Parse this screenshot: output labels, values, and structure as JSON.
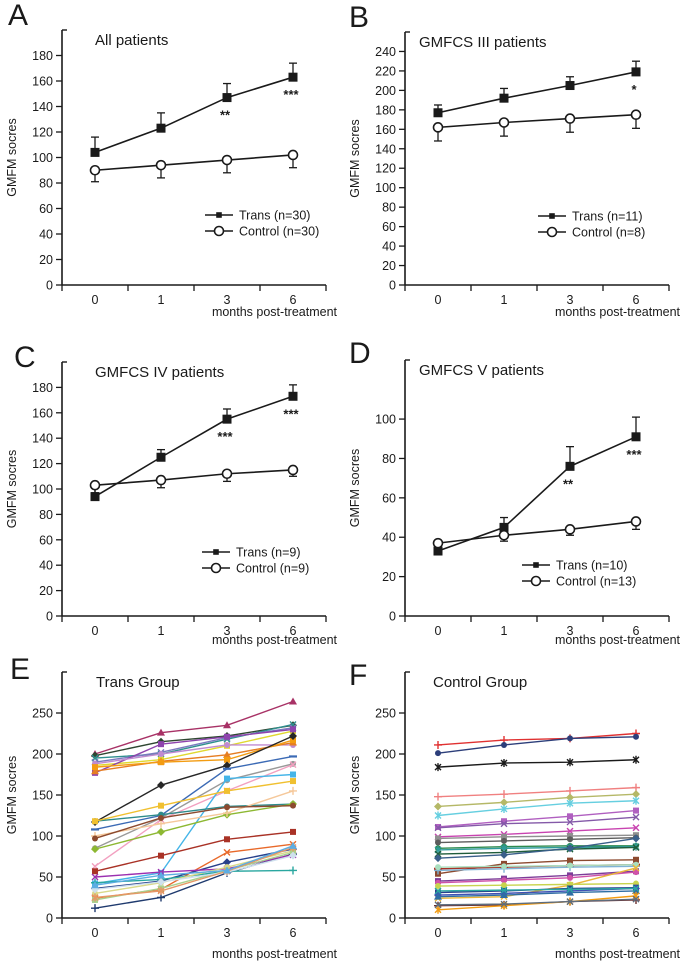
{
  "figure": {
    "x_axis_label": "months post-treatment",
    "y_axis_label": "GMFM socres",
    "categories": [
      "0",
      "1",
      "3",
      "6"
    ],
    "line_color": "#1a1a1a",
    "background": "#ffffff"
  },
  "chart_data": [
    {
      "panel": "A",
      "type": "line",
      "title": "All patients",
      "xlabel": "months post-treatment",
      "ylabel": "GMFM socres",
      "categories": [
        "0",
        "1",
        "3",
        "6"
      ],
      "yticks": [
        0,
        20,
        40,
        60,
        80,
        100,
        120,
        140,
        160,
        180
      ],
      "ylim": [
        0,
        200
      ],
      "legend_position": "lower right",
      "grid": false,
      "series": [
        {
          "name": "Trans (n=30)",
          "color": "#1a1a1a",
          "marker": "square-filled",
          "values": [
            104,
            123,
            147,
            163
          ],
          "err": [
            12,
            12,
            11,
            11
          ],
          "err_dir": "up"
        },
        {
          "name": "Control (n=30)",
          "color": "#1a1a1a",
          "marker": "circle-open",
          "values": [
            90,
            94,
            98,
            102
          ],
          "err": [
            9,
            10,
            10,
            10
          ],
          "err_dir": "down"
        }
      ],
      "annotations": [
        {
          "x": 2,
          "text": "**"
        },
        {
          "x": 3,
          "text": "***"
        }
      ]
    },
    {
      "panel": "B",
      "type": "line",
      "title": "GMFCS III patients",
      "xlabel": "months post-treatment",
      "ylabel": "GMFM socres",
      "categories": [
        "0",
        "1",
        "3",
        "6"
      ],
      "yticks": [
        0,
        20,
        40,
        60,
        80,
        100,
        120,
        140,
        160,
        180,
        200,
        220,
        240
      ],
      "ylim": [
        0,
        260
      ],
      "legend_position": "lower right",
      "grid": false,
      "series": [
        {
          "name": "Trans (n=11)",
          "color": "#1a1a1a",
          "marker": "square-filled",
          "values": [
            177,
            192,
            205,
            219
          ],
          "err": [
            8,
            10,
            9,
            11
          ],
          "err_dir": "up"
        },
        {
          "name": "Control (n=8)",
          "color": "#1a1a1a",
          "marker": "circle-open",
          "values": [
            162,
            167,
            171,
            175
          ],
          "err": [
            14,
            14,
            14,
            14
          ],
          "err_dir": "down"
        }
      ],
      "annotations": [
        {
          "x": 3,
          "text": "*"
        }
      ]
    },
    {
      "panel": "C",
      "type": "line",
      "title": "GMFCS IV patients",
      "xlabel": "months post-treatment",
      "ylabel": "GMFM socres",
      "categories": [
        "0",
        "1",
        "3",
        "6"
      ],
      "yticks": [
        0,
        20,
        40,
        60,
        80,
        100,
        120,
        140,
        160,
        180
      ],
      "ylim": [
        0,
        200
      ],
      "legend_position": "lower right",
      "grid": false,
      "series": [
        {
          "name": "Trans (n=9)",
          "color": "#1a1a1a",
          "marker": "square-filled",
          "values": [
            94,
            125,
            155,
            173
          ],
          "err": [
            7,
            6,
            8,
            9
          ],
          "err_dir": "up"
        },
        {
          "name": "Control (n=9)",
          "color": "#1a1a1a",
          "marker": "circle-open",
          "values": [
            103,
            107,
            112,
            115
          ],
          "err": [
            6,
            6,
            6,
            5
          ],
          "err_dir": "down"
        }
      ],
      "annotations": [
        {
          "x": 2,
          "text": "***"
        },
        {
          "x": 3,
          "text": "***"
        }
      ]
    },
    {
      "panel": "D",
      "type": "line",
      "title": "GMFCS V patients",
      "xlabel": "months post-treatment",
      "ylabel": "GMFM socres",
      "categories": [
        "0",
        "1",
        "3",
        "6"
      ],
      "yticks": [
        0,
        20,
        40,
        60,
        80,
        100
      ],
      "ylim": [
        0,
        130
      ],
      "legend_position": "lower right",
      "grid": false,
      "series": [
        {
          "name": "Trans (n=10)",
          "color": "#1a1a1a",
          "marker": "square-filled",
          "values": [
            33,
            45,
            76,
            91
          ],
          "err": [
            3,
            5,
            10,
            10
          ],
          "err_dir": "up"
        },
        {
          "name": "Control (n=13)",
          "color": "#1a1a1a",
          "marker": "circle-open",
          "values": [
            37,
            41,
            44,
            48
          ],
          "err": [
            4,
            3,
            3,
            4
          ],
          "err_dir": "down"
        }
      ],
      "annotations": [
        {
          "x": 2,
          "text": "**"
        },
        {
          "x": 3,
          "text": "***"
        }
      ]
    },
    {
      "panel": "E",
      "type": "line",
      "title": "Trans Group",
      "xlabel": "months post-treatment",
      "ylabel": "GMFM socres",
      "categories": [
        "0",
        "1",
        "3",
        "6"
      ],
      "yticks": [
        0,
        50,
        100,
        150,
        200,
        250
      ],
      "ylim": [
        0,
        300
      ],
      "legend_position": "none",
      "grid": false,
      "series": [
        {
          "color": "#a83266",
          "marker": "triangle",
          "values": [
            200,
            226,
            235,
            264
          ]
        },
        {
          "color": "#2e4631",
          "marker": "diamond",
          "values": [
            198,
            215,
            222,
            235
          ]
        },
        {
          "color": "#2f8f8f",
          "marker": "x",
          "values": [
            195,
            200,
            218,
            236
          ]
        },
        {
          "color": "#7a7abf",
          "marker": "x",
          "values": [
            190,
            202,
            220,
            232
          ]
        },
        {
          "color": "#e0d830",
          "marker": "square",
          "values": [
            186,
            193,
            210,
            228
          ]
        },
        {
          "color": "#8e44ad",
          "marker": "square",
          "values": [
            177,
            212,
            221,
            230
          ]
        },
        {
          "color": "#c08bd0",
          "marker": "circle",
          "values": [
            188,
            200,
            211,
            211
          ]
        },
        {
          "color": "#e67e22",
          "marker": "triangle",
          "values": [
            179,
            191,
            199,
            214
          ]
        },
        {
          "color": "#f39c12",
          "marker": "square",
          "values": [
            184,
            190,
            193,
            217
          ]
        },
        {
          "color": "#262626",
          "marker": "diamond",
          "values": [
            117,
            162,
            186,
            222
          ]
        },
        {
          "color": "#3b6ab5",
          "marker": "dash",
          "values": [
            108,
            125,
            182,
            197
          ]
        },
        {
          "color": "#999999",
          "marker": "circle",
          "values": [
            85,
            122,
            168,
            188
          ]
        },
        {
          "color": "#f2a0c0",
          "marker": "x",
          "values": [
            63,
            120,
            155,
            187
          ]
        },
        {
          "color": "#45b5e8",
          "marker": "square",
          "values": [
            42,
            55,
            170,
            175
          ]
        },
        {
          "color": "#2e8b8b",
          "marker": "circle",
          "values": [
            118,
            126,
            136,
            139
          ]
        },
        {
          "color": "#8db832",
          "marker": "diamond",
          "values": [
            84,
            105,
            126,
            139
          ]
        },
        {
          "color": "#f0c030",
          "marker": "square",
          "values": [
            118,
            137,
            155,
            167
          ]
        },
        {
          "color": "#f5c89a",
          "marker": "plus",
          "values": [
            100,
            115,
            128,
            155
          ]
        },
        {
          "color": "#a93226",
          "marker": "square",
          "values": [
            57,
            76,
            96,
            105
          ]
        },
        {
          "color": "#8c4a2f",
          "marker": "circle",
          "values": [
            97,
            122,
            135,
            137
          ]
        },
        {
          "color": "#e8692a",
          "marker": "x",
          "values": [
            24,
            35,
            80,
            90
          ]
        },
        {
          "color": "#1f3a6e",
          "marker": "plus",
          "values": [
            12,
            25,
            55,
            78
          ]
        },
        {
          "color": "#27408b",
          "marker": "diamond",
          "values": [
            36,
            45,
            68,
            84
          ]
        },
        {
          "color": "#9b30b0",
          "marker": "x",
          "values": [
            50,
            56,
            60,
            77
          ]
        },
        {
          "color": "#2aa7a0",
          "marker": "plus",
          "values": [
            43,
            47,
            57,
            58
          ]
        },
        {
          "color": "#d9d98a",
          "marker": "circle",
          "values": [
            30,
            43,
            62,
            82
          ]
        },
        {
          "color": "#a8d08d",
          "marker": "square",
          "values": [
            22,
            36,
            58,
            80
          ]
        },
        {
          "color": "#cfe0ee",
          "marker": "diamond",
          "values": [
            35,
            44,
            56,
            76
          ]
        },
        {
          "color": "#e59866",
          "marker": "star",
          "values": [
            25,
            33,
            57,
            86
          ]
        },
        {
          "color": "#5dade2",
          "marker": "triangle",
          "values": [
            40,
            52,
            58,
            88
          ]
        }
      ],
      "annotations": []
    },
    {
      "panel": "F",
      "type": "line",
      "title": "Control Group",
      "xlabel": "months post-treatment",
      "ylabel": "GMFM socres",
      "categories": [
        "0",
        "1",
        "3",
        "6"
      ],
      "yticks": [
        0,
        50,
        100,
        150,
        200,
        250
      ],
      "ylim": [
        0,
        300
      ],
      "legend_position": "none",
      "grid": false,
      "series": [
        {
          "color": "#e03131",
          "marker": "plus",
          "values": [
            211,
            217,
            219,
            225
          ]
        },
        {
          "color": "#2c3e7a",
          "marker": "circle",
          "values": [
            201,
            211,
            219,
            221
          ]
        },
        {
          "color": "#1a1a1a",
          "marker": "star",
          "values": [
            184,
            189,
            190,
            193
          ]
        },
        {
          "color": "#f08080",
          "marker": "plus",
          "values": [
            148,
            151,
            155,
            159
          ]
        },
        {
          "color": "#b5b867",
          "marker": "diamond",
          "values": [
            136,
            141,
            147,
            151
          ]
        },
        {
          "color": "#66cfe0",
          "marker": "star",
          "values": [
            125,
            133,
            140,
            143
          ]
        },
        {
          "color": "#b05fc0",
          "marker": "square",
          "values": [
            111,
            118,
            124,
            131
          ]
        },
        {
          "color": "#8459a8",
          "marker": "x",
          "values": [
            110,
            115,
            117,
            123
          ]
        },
        {
          "color": "#c843b0",
          "marker": "x",
          "values": [
            99,
            102,
            106,
            110
          ]
        },
        {
          "color": "#909090",
          "marker": "square",
          "values": [
            97,
            99,
            100,
            101
          ]
        },
        {
          "color": "#5c5c5c",
          "marker": "circle",
          "values": [
            92,
            94,
            96,
            98
          ]
        },
        {
          "color": "#2d8a4e",
          "marker": "circle",
          "values": [
            85,
            87,
            88,
            88
          ]
        },
        {
          "color": "#2f9b9b",
          "marker": "star",
          "values": [
            83,
            85,
            86,
            87
          ]
        },
        {
          "color": "#1f5c3a",
          "marker": "x",
          "values": [
            78,
            80,
            84,
            86
          ]
        },
        {
          "color": "#3a5f8a",
          "marker": "diamond",
          "values": [
            73,
            77,
            85,
            97
          ]
        },
        {
          "color": "#8c4a2f",
          "marker": "square",
          "values": [
            54,
            66,
            70,
            71
          ]
        },
        {
          "color": "#a93226",
          "marker": "dash",
          "values": [
            60,
            62,
            64,
            65
          ]
        },
        {
          "color": "#7fb3d5",
          "marker": "plus",
          "values": [
            58,
            60,
            62,
            63
          ]
        },
        {
          "color": "#a9dfbf",
          "marker": "circle",
          "values": [
            62,
            63,
            64,
            65
          ]
        },
        {
          "color": "#7d3c98",
          "marker": "square",
          "values": [
            45,
            48,
            52,
            57
          ]
        },
        {
          "color": "#d052a8",
          "marker": "circle",
          "values": [
            43,
            46,
            49,
            56
          ]
        },
        {
          "color": "#e9b63a",
          "marker": "x",
          "values": [
            24,
            26,
            40,
            61
          ]
        },
        {
          "color": "#c8d44e",
          "marker": "circle",
          "values": [
            39,
            40,
            41,
            42
          ]
        },
        {
          "color": "#27408b",
          "marker": "square",
          "values": [
            31,
            33,
            36,
            37
          ]
        },
        {
          "color": "#3f51b5",
          "marker": "diamond",
          "values": [
            28,
            30,
            33,
            36
          ]
        },
        {
          "color": "#2e6da4",
          "marker": "triangle",
          "values": [
            26,
            28,
            31,
            33
          ]
        },
        {
          "color": "#2aa7a0",
          "marker": "x",
          "values": [
            33,
            34,
            35,
            36
          ]
        },
        {
          "color": "#6b2d2d",
          "marker": "plus",
          "values": [
            15,
            16,
            20,
            22
          ]
        },
        {
          "color": "#f39c12",
          "marker": "star",
          "values": [
            10,
            15,
            20,
            27
          ]
        },
        {
          "color": "#5d6d7e",
          "marker": "x",
          "values": [
            16,
            17,
            20,
            23
          ]
        }
      ],
      "annotations": []
    }
  ]
}
